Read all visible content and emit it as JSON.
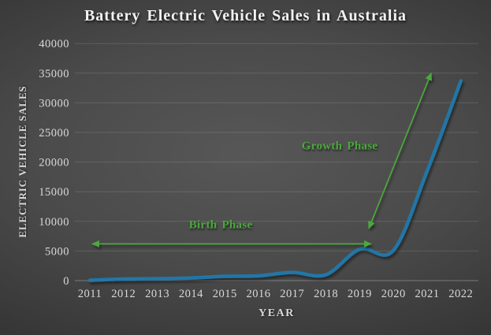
{
  "colors": {
    "line": "#2176A6",
    "accent_green": "#4BA83C",
    "title_text": "#F2F2F2",
    "tick_text": "#D9D9D9",
    "background_center": "#575757",
    "background_edge": "#1F1F1F"
  },
  "chart_data": {
    "type": "line",
    "title": "Battery Electric Vehicle Sales in Australia",
    "xlabel": "YEAR",
    "ylabel": "ELECTRIC VEHICLE SALES",
    "categories": [
      "2011",
      "2012",
      "2013",
      "2014",
      "2015",
      "2016",
      "2017",
      "2018",
      "2019",
      "2020",
      "2021",
      "2022"
    ],
    "values": [
      50,
      270,
      330,
      450,
      730,
      800,
      1400,
      1000,
      5300,
      5100,
      18500,
      33700
    ],
    "ylim": [
      0,
      40000
    ],
    "ytick_step": 5000,
    "grid": true,
    "line_style": "smooth",
    "legend": "none",
    "annotations": [
      {
        "text": "Birth Phase",
        "arrow": "horizontal-double-headed",
        "from": {
          "year_index": 0.07,
          "value": 6200
        },
        "to": {
          "year_index": 8.34,
          "value": 6200
        },
        "label_at": {
          "year_index": 3.88,
          "value": 9300
        }
      },
      {
        "text": "Growth Phase",
        "arrow": "diagonal-double-headed",
        "from": {
          "year_index": 8.27,
          "value": 8800
        },
        "to": {
          "year_index": 10.12,
          "value": 35000
        },
        "label_at": {
          "year_index": 7.41,
          "value": 22600
        }
      }
    ]
  }
}
